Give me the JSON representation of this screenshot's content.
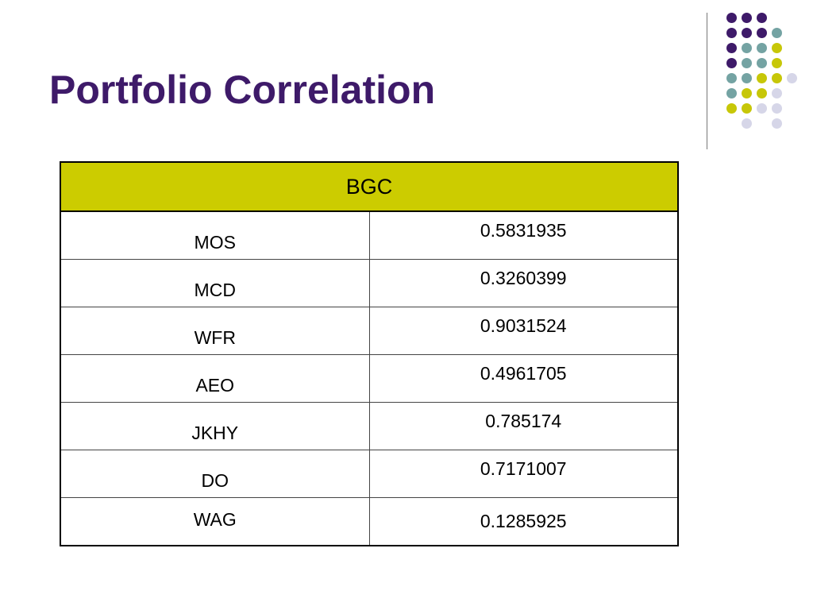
{
  "slide": {
    "title": "Portfolio Correlation"
  },
  "table": {
    "header": "BGC",
    "rows": [
      {
        "ticker": "MOS",
        "value": "0.5831935"
      },
      {
        "ticker": "MCD",
        "value": "0.3260399"
      },
      {
        "ticker": "WFR",
        "value": "0.9031524"
      },
      {
        "ticker": "AEO",
        "value": "0.4961705"
      },
      {
        "ticker": "JKHY",
        "value": "0.785174"
      },
      {
        "ticker": "DO",
        "value": "0.7171007"
      },
      {
        "ticker": "WAG",
        "value": "0.1285925"
      }
    ]
  },
  "theme": {
    "title_color": "#3e1a69",
    "header_fill": "#cccc00",
    "dot_colors": [
      "#3e1a69",
      "#74a3a3",
      "#c7c708",
      "#d6d6e8"
    ]
  }
}
